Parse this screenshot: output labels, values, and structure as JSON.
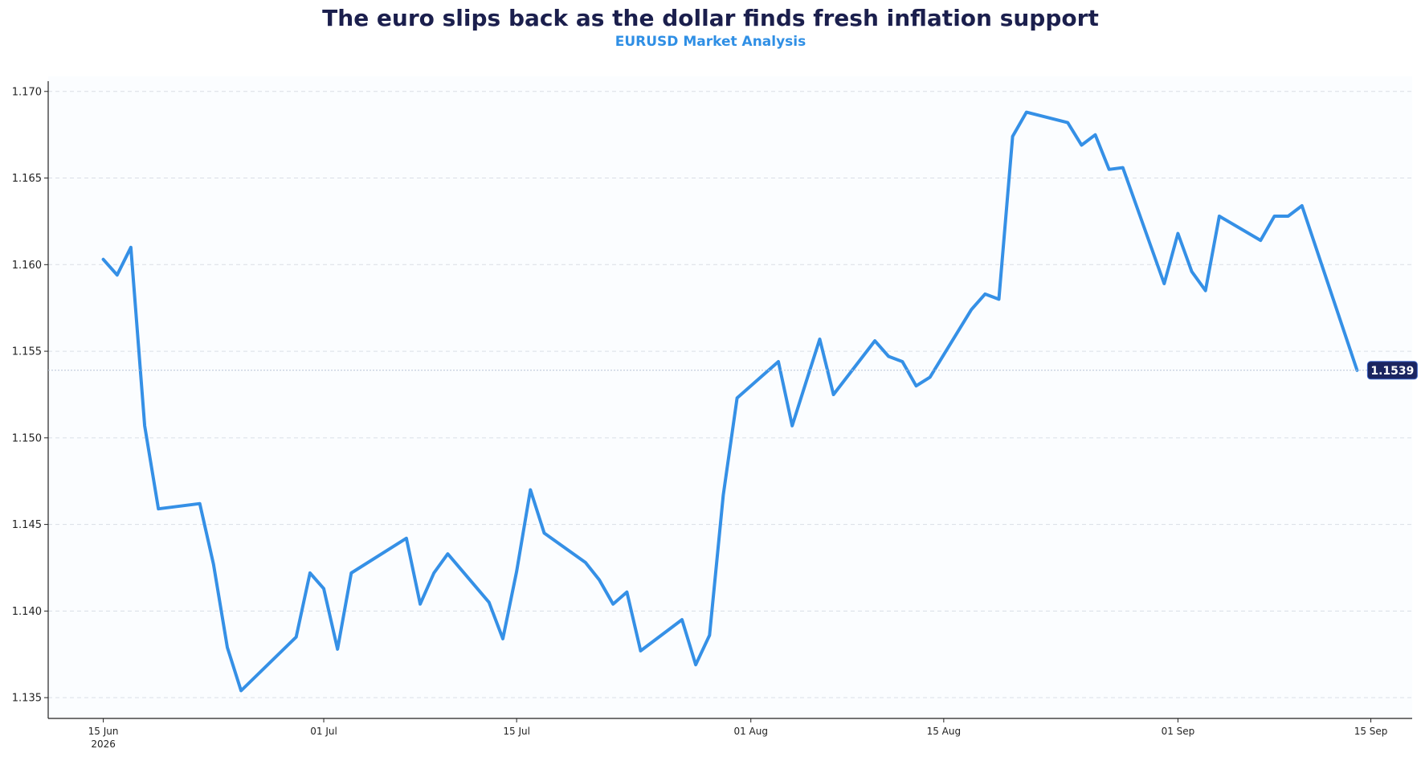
{
  "title": "The euro slips back as the dollar finds fresh inflation support",
  "subtitle": "EURUSD Market Analysis",
  "colors": {
    "line": "#3590e6",
    "title": "#1b1f4d",
    "subtitle": "#2f8fe5",
    "badge": "#1b2560",
    "grid": "#d9dee6"
  },
  "chart_data": {
    "type": "line",
    "title": "The euro slips back as the dollar finds fresh inflation support",
    "subtitle": "EURUSD Market Analysis",
    "xlabel": "",
    "ylabel": "",
    "grid": "horizontal-dashed",
    "ylim": [
      1.1338,
      1.1705
    ],
    "xlim": [
      "2026-06-11",
      "2026-09-18"
    ],
    "yticks": [
      1.135,
      1.14,
      1.145,
      1.15,
      1.155,
      1.16,
      1.165,
      1.17
    ],
    "ytick_labels": [
      "1.135",
      "1.140",
      "1.145",
      "1.150",
      "1.155",
      "1.160",
      "1.165",
      "1.170"
    ],
    "xticks": [
      "2026-06-15",
      "2026-07-01",
      "2026-07-15",
      "2026-08-01",
      "2026-08-15",
      "2026-09-01",
      "2026-09-15"
    ],
    "xtick_labels": [
      "15 Jun",
      "01 Jul",
      "15 Jul",
      "01 Aug",
      "15 Aug",
      "01 Sep",
      "15 Sep"
    ],
    "xtick_year_label": "2026",
    "last_value_label": "1.1539",
    "series": [
      {
        "values": [
          [
            "2026-06-15",
            1.1603
          ],
          [
            "2026-06-16",
            1.1594
          ],
          [
            "2026-06-17",
            1.161
          ],
          [
            "2026-06-18",
            1.1507
          ],
          [
            "2026-06-19",
            1.1459
          ],
          [
            "2026-06-22",
            1.1462
          ],
          [
            "2026-06-23",
            1.1427
          ],
          [
            "2026-06-24",
            1.1379
          ],
          [
            "2026-06-25",
            1.1354
          ],
          [
            "2026-06-29",
            1.1385
          ],
          [
            "2026-06-30",
            1.1422
          ],
          [
            "2026-07-01",
            1.1413
          ],
          [
            "2026-07-02",
            1.1378
          ],
          [
            "2026-07-03",
            1.1422
          ],
          [
            "2026-07-06",
            1.1437
          ],
          [
            "2026-07-07",
            1.1442
          ],
          [
            "2026-07-08",
            1.1404
          ],
          [
            "2026-07-09",
            1.1422
          ],
          [
            "2026-07-10",
            1.1433
          ],
          [
            "2026-07-13",
            1.1405
          ],
          [
            "2026-07-14",
            1.1384
          ],
          [
            "2026-07-15",
            1.1423
          ],
          [
            "2026-07-16",
            1.147
          ],
          [
            "2026-07-17",
            1.1445
          ],
          [
            "2026-07-20",
            1.1428
          ],
          [
            "2026-07-21",
            1.1418
          ],
          [
            "2026-07-22",
            1.1404
          ],
          [
            "2026-07-23",
            1.1411
          ],
          [
            "2026-07-24",
            1.1377
          ],
          [
            "2026-07-27",
            1.1395
          ],
          [
            "2026-07-28",
            1.1369
          ],
          [
            "2026-07-29",
            1.1386
          ],
          [
            "2026-07-30",
            1.1467
          ],
          [
            "2026-07-31",
            1.1523
          ],
          [
            "2026-08-03",
            1.1544
          ],
          [
            "2026-08-04",
            1.1507
          ],
          [
            "2026-08-05",
            1.1532
          ],
          [
            "2026-08-06",
            1.1557
          ],
          [
            "2026-08-07",
            1.1525
          ],
          [
            "2026-08-10",
            1.1556
          ],
          [
            "2026-08-11",
            1.1547
          ],
          [
            "2026-08-12",
            1.1544
          ],
          [
            "2026-08-13",
            1.153
          ],
          [
            "2026-08-14",
            1.1535
          ],
          [
            "2026-08-17",
            1.1574
          ],
          [
            "2026-08-18",
            1.1583
          ],
          [
            "2026-08-19",
            1.158
          ],
          [
            "2026-08-20",
            1.1674
          ],
          [
            "2026-08-21",
            1.1688
          ],
          [
            "2026-08-24",
            1.1682
          ],
          [
            "2026-08-25",
            1.1669
          ],
          [
            "2026-08-26",
            1.1675
          ],
          [
            "2026-08-27",
            1.1655
          ],
          [
            "2026-08-28",
            1.1656
          ],
          [
            "2026-08-31",
            1.1589
          ],
          [
            "2026-09-01",
            1.1618
          ],
          [
            "2026-09-02",
            1.1596
          ],
          [
            "2026-09-03",
            1.1585
          ],
          [
            "2026-09-04",
            1.1628
          ],
          [
            "2026-09-07",
            1.1614
          ],
          [
            "2026-09-08",
            1.1628
          ],
          [
            "2026-09-09",
            1.1628
          ],
          [
            "2026-09-10",
            1.1634
          ],
          [
            "2026-09-14",
            1.1539
          ]
        ]
      }
    ]
  }
}
